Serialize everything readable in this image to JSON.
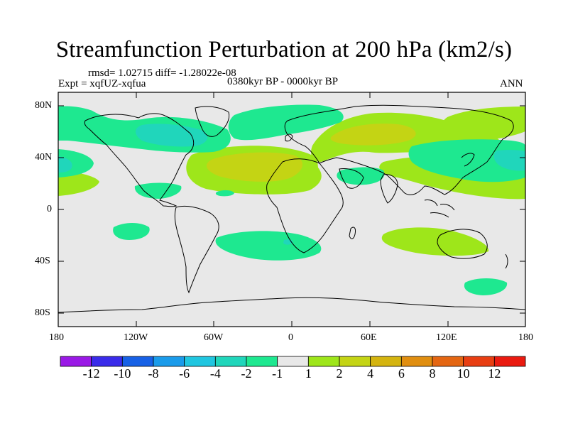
{
  "title": "Streamfunction Perturbation at 200 hPa (km2/s)",
  "stats_line": "rmsd= 1.02715 diff= -1.28022e-08",
  "experiment": "Expt = xqfUZ-xqfua",
  "period": "0380kyr BP - 0000kyr BP",
  "season": "ANN",
  "map": {
    "lon_ticks": [
      "180",
      "120W",
      "60W",
      "0",
      "60E",
      "120E",
      "180"
    ],
    "lat_ticks": [
      "80N",
      "40N",
      "0",
      "40S",
      "80S"
    ]
  },
  "colorbar": {
    "colors": [
      "#9a19e6",
      "#3a2bea",
      "#1761e6",
      "#1a9bea",
      "#20c6e0",
      "#20d6bb",
      "#1ee890",
      "#e8e8e8",
      "#9ee61a",
      "#c4d414",
      "#d4b40f",
      "#e08e10",
      "#e46612",
      "#e83e12",
      "#ea1a10"
    ],
    "labels": [
      "-12",
      "-10",
      "-8",
      "-6",
      "-4",
      "-2",
      "-1",
      "1",
      "2",
      "4",
      "6",
      "8",
      "10",
      "12"
    ]
  }
}
